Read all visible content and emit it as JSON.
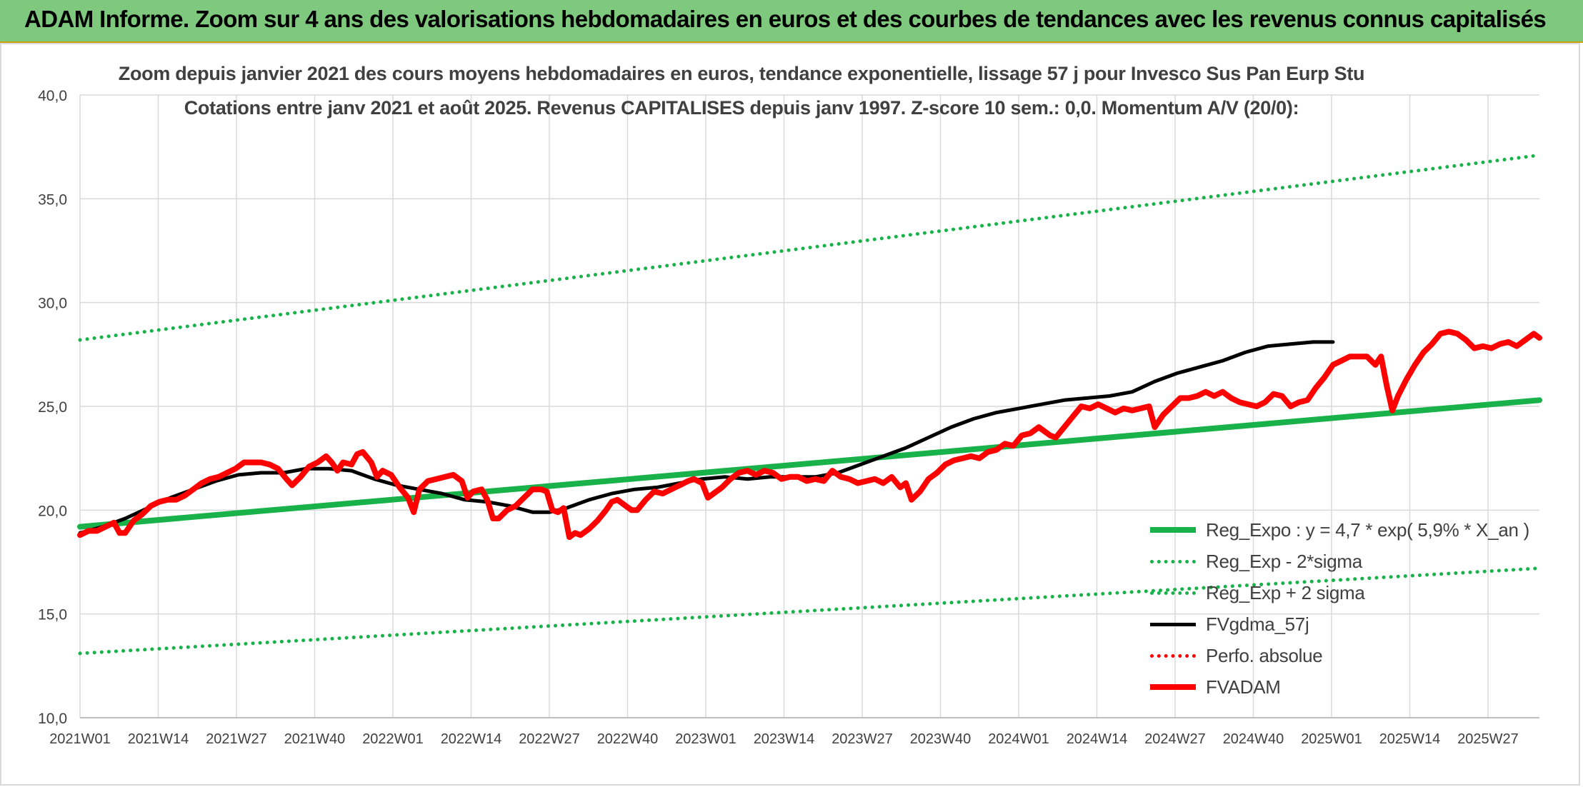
{
  "banner": {
    "title": "ADAM Informe. Zoom sur 4 ans des valorisations hebdomadaires en euros et des courbes de tendances avec les revenus connus capitalisés"
  },
  "chart_data": {
    "type": "line",
    "title_line1": "Zoom depuis janvier 2021 des cours moyens hebdomadaires en euros, tendance exponentielle, lissage 57 j pour Invesco Sus Pan Eurp Stu",
    "title_line2": "Cotations entre janv 2021 et août 2025. Revenus CAPITALISES depuis janv 1997. Z-score 10 sem.: 0,0. Momentum A/V (20/0):",
    "x_tick_labels": [
      "2021W01",
      "2021W14",
      "2021W27",
      "2021W40",
      "2022W01",
      "2022W14",
      "2022W27",
      "2022W40",
      "2023W01",
      "2023W14",
      "2023W27",
      "2023W40",
      "2024W01",
      "2024W14",
      "2024W27",
      "2024W40",
      "2025W01",
      "2025W14",
      "2025W27"
    ],
    "y_tick_labels": [
      "10,0",
      "15,0",
      "20,0",
      "25,0",
      "30,0",
      "35,0",
      "40,0"
    ],
    "ylim": [
      10,
      40
    ],
    "n_weeks": 244,
    "grid": true,
    "legend_position": "right, lower half",
    "series": [
      {
        "name": "Reg_Expo : y = 4,7 * exp( 5,9% *  X_an )",
        "color": "#19b24a",
        "style": "solid",
        "points": [
          [
            0,
            19.2
          ],
          [
            243,
            25.3
          ]
        ]
      },
      {
        "name": "Reg_Exp - 2*sigma",
        "color": "#19b24a",
        "style": "dotted",
        "points": [
          [
            0,
            13.1
          ],
          [
            243,
            17.2
          ]
        ]
      },
      {
        "name": "Reg_Exp + 2 sigma",
        "color": "#19b24a",
        "style": "dotted",
        "points": [
          [
            0,
            28.2
          ],
          [
            243,
            37.1
          ]
        ]
      },
      {
        "name": "FVgdma_57j",
        "color": "#000000",
        "style": "solid",
        "points": [
          [
            0,
            18.9
          ],
          [
            8,
            19.2
          ],
          [
            16,
            19.6
          ],
          [
            24,
            20.1
          ],
          [
            32,
            20.6
          ],
          [
            40,
            21.0
          ],
          [
            48,
            21.4
          ],
          [
            56,
            21.7
          ],
          [
            64,
            21.8
          ],
          [
            72,
            21.8
          ],
          [
            80,
            22.0
          ],
          [
            88,
            22.0
          ],
          [
            96,
            21.9
          ],
          [
            104,
            21.5
          ],
          [
            112,
            21.2
          ],
          [
            120,
            21.0
          ],
          [
            128,
            20.8
          ],
          [
            136,
            20.5
          ],
          [
            144,
            20.4
          ],
          [
            152,
            20.2
          ],
          [
            160,
            19.9
          ],
          [
            166,
            19.9
          ],
          [
            172,
            20.1
          ],
          [
            180,
            20.5
          ],
          [
            188,
            20.8
          ],
          [
            196,
            21.0
          ],
          [
            204,
            21.1
          ],
          [
            212,
            21.3
          ],
          [
            220,
            21.5
          ],
          [
            228,
            21.6
          ],
          [
            236,
            21.5
          ],
          [
            244,
            21.6
          ],
          [
            252,
            21.6
          ],
          [
            260,
            21.6
          ],
          [
            268,
            21.8
          ],
          [
            276,
            22.2
          ],
          [
            284,
            22.6
          ],
          [
            292,
            23.0
          ],
          [
            300,
            23.5
          ],
          [
            308,
            24.0
          ],
          [
            316,
            24.4
          ],
          [
            324,
            24.7
          ],
          [
            332,
            24.9
          ],
          [
            340,
            25.1
          ],
          [
            348,
            25.3
          ],
          [
            356,
            25.4
          ],
          [
            364,
            25.5
          ],
          [
            372,
            25.7
          ],
          [
            380,
            26.2
          ],
          [
            388,
            26.6
          ],
          [
            396,
            26.9
          ],
          [
            404,
            27.2
          ],
          [
            412,
            27.6
          ],
          [
            420,
            27.9
          ],
          [
            428,
            28.0
          ],
          [
            436,
            28.1
          ],
          [
            443,
            28.1
          ]
        ]
      },
      {
        "name": "Perfo. absolue",
        "color": "#ff0000",
        "style": "dotted",
        "points": []
      },
      {
        "name": "FVADAM",
        "color": "#ff0000",
        "style": "solid",
        "points": [
          [
            0,
            18.8
          ],
          [
            3,
            19.0
          ],
          [
            6,
            19.0
          ],
          [
            9,
            19.2
          ],
          [
            12,
            19.4
          ],
          [
            14,
            18.9
          ],
          [
            16,
            18.9
          ],
          [
            19,
            19.5
          ],
          [
            22,
            19.8
          ],
          [
            25,
            20.2
          ],
          [
            28,
            20.4
          ],
          [
            31,
            20.5
          ],
          [
            34,
            20.5
          ],
          [
            37,
            20.7
          ],
          [
            40,
            21.0
          ],
          [
            43,
            21.3
          ],
          [
            46,
            21.5
          ],
          [
            49,
            21.6
          ],
          [
            52,
            21.8
          ],
          [
            55,
            22.0
          ],
          [
            58,
            22.3
          ],
          [
            61,
            22.3
          ],
          [
            64,
            22.3
          ],
          [
            67,
            22.2
          ],
          [
            70,
            22.0
          ],
          [
            73,
            21.5
          ],
          [
            75,
            21.2
          ],
          [
            78,
            21.6
          ],
          [
            81,
            22.1
          ],
          [
            84,
            22.3
          ],
          [
            87,
            22.6
          ],
          [
            89,
            22.3
          ],
          [
            91,
            21.9
          ],
          [
            93,
            22.3
          ],
          [
            96,
            22.2
          ],
          [
            98,
            22.7
          ],
          [
            100,
            22.8
          ],
          [
            103,
            22.3
          ],
          [
            105,
            21.6
          ],
          [
            107,
            21.9
          ],
          [
            110,
            21.7
          ],
          [
            113,
            21.1
          ],
          [
            116,
            20.6
          ],
          [
            118,
            19.9
          ],
          [
            120,
            21.0
          ],
          [
            123,
            21.4
          ],
          [
            126,
            21.5
          ],
          [
            129,
            21.6
          ],
          [
            132,
            21.7
          ],
          [
            135,
            21.4
          ],
          [
            137,
            20.6
          ],
          [
            139,
            20.9
          ],
          [
            142,
            21.0
          ],
          [
            144,
            20.5
          ],
          [
            146,
            19.6
          ],
          [
            148,
            19.6
          ],
          [
            151,
            20.0
          ],
          [
            154,
            20.2
          ],
          [
            157,
            20.6
          ],
          [
            160,
            21.0
          ],
          [
            163,
            21.0
          ],
          [
            165,
            20.9
          ],
          [
            167,
            20.0
          ],
          [
            169,
            19.9
          ],
          [
            171,
            20.1
          ],
          [
            173,
            18.7
          ],
          [
            175,
            18.9
          ],
          [
            177,
            18.8
          ],
          [
            180,
            19.1
          ],
          [
            183,
            19.5
          ],
          [
            186,
            20.0
          ],
          [
            188,
            20.4
          ],
          [
            190,
            20.5
          ],
          [
            193,
            20.2
          ],
          [
            195,
            20.0
          ],
          [
            197,
            20.0
          ],
          [
            200,
            20.5
          ],
          [
            203,
            20.9
          ],
          [
            206,
            20.8
          ],
          [
            209,
            21.0
          ],
          [
            212,
            21.2
          ],
          [
            215,
            21.4
          ],
          [
            217,
            21.5
          ],
          [
            220,
            21.3
          ],
          [
            222,
            20.6
          ],
          [
            224,
            20.8
          ],
          [
            227,
            21.1
          ],
          [
            230,
            21.5
          ],
          [
            233,
            21.8
          ],
          [
            236,
            21.9
          ],
          [
            239,
            21.7
          ],
          [
            242,
            21.9
          ],
          [
            245,
            21.8
          ],
          [
            248,
            21.5
          ],
          [
            251,
            21.6
          ],
          [
            254,
            21.6
          ],
          [
            257,
            21.4
          ],
          [
            260,
            21.5
          ],
          [
            263,
            21.4
          ],
          [
            266,
            21.9
          ],
          [
            269,
            21.6
          ],
          [
            272,
            21.5
          ],
          [
            275,
            21.3
          ],
          [
            278,
            21.4
          ],
          [
            281,
            21.5
          ],
          [
            284,
            21.3
          ],
          [
            287,
            21.6
          ],
          [
            290,
            21.1
          ],
          [
            292,
            21.3
          ],
          [
            294,
            20.5
          ],
          [
            297,
            20.9
          ],
          [
            300,
            21.5
          ],
          [
            303,
            21.8
          ],
          [
            306,
            22.2
          ],
          [
            309,
            22.4
          ],
          [
            312,
            22.5
          ],
          [
            315,
            22.6
          ],
          [
            318,
            22.5
          ],
          [
            321,
            22.8
          ],
          [
            324,
            22.9
          ],
          [
            327,
            23.2
          ],
          [
            330,
            23.1
          ],
          [
            333,
            23.6
          ],
          [
            336,
            23.7
          ],
          [
            339,
            24.0
          ],
          [
            341,
            23.8
          ],
          [
            343,
            23.6
          ],
          [
            345,
            23.5
          ],
          [
            348,
            24.0
          ],
          [
            351,
            24.5
          ],
          [
            354,
            25.0
          ],
          [
            357,
            24.9
          ],
          [
            360,
            25.1
          ],
          [
            363,
            24.9
          ],
          [
            366,
            24.7
          ],
          [
            369,
            24.9
          ],
          [
            372,
            24.8
          ],
          [
            375,
            24.9
          ],
          [
            378,
            25.0
          ],
          [
            380,
            24.0
          ],
          [
            383,
            24.6
          ],
          [
            386,
            25.0
          ],
          [
            389,
            25.4
          ],
          [
            392,
            25.4
          ],
          [
            395,
            25.5
          ],
          [
            398,
            25.7
          ],
          [
            401,
            25.5
          ],
          [
            404,
            25.7
          ],
          [
            407,
            25.4
          ],
          [
            410,
            25.2
          ],
          [
            413,
            25.1
          ],
          [
            416,
            25.0
          ],
          [
            419,
            25.2
          ],
          [
            422,
            25.6
          ],
          [
            425,
            25.5
          ],
          [
            428,
            25.0
          ],
          [
            431,
            25.2
          ],
          [
            434,
            25.3
          ],
          [
            437,
            25.9
          ],
          [
            440,
            26.4
          ],
          [
            443,
            27.0
          ],
          [
            446,
            27.2
          ],
          [
            449,
            27.4
          ],
          [
            452,
            27.4
          ],
          [
            455,
            27.4
          ],
          [
            458,
            27.0
          ],
          [
            460,
            27.4
          ],
          [
            462,
            26.0
          ],
          [
            464,
            24.8
          ],
          [
            466,
            25.5
          ],
          [
            469,
            26.3
          ],
          [
            472,
            27.0
          ],
          [
            475,
            27.6
          ],
          [
            478,
            28.0
          ],
          [
            481,
            28.5
          ],
          [
            484,
            28.6
          ],
          [
            487,
            28.5
          ],
          [
            490,
            28.2
          ],
          [
            493,
            27.8
          ],
          [
            496,
            27.9
          ],
          [
            499,
            27.8
          ],
          [
            502,
            28.0
          ],
          [
            505,
            28.1
          ],
          [
            508,
            27.9
          ],
          [
            511,
            28.2
          ],
          [
            514,
            28.5
          ],
          [
            516,
            28.3
          ]
        ]
      }
    ]
  }
}
